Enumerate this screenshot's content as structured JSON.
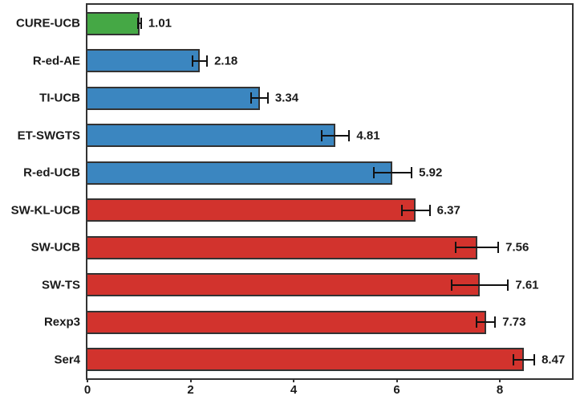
{
  "chart_data": {
    "type": "bar",
    "orientation": "horizontal",
    "title": "",
    "xlabel": "",
    "ylabel": "",
    "grid": false,
    "legend": null,
    "xlim": [
      0,
      9.4
    ],
    "x_tick_values": [
      0,
      2,
      4,
      6,
      8
    ],
    "x_tick_labels": [
      "0",
      "2",
      "4",
      "6",
      "8"
    ],
    "categories": [
      "CURE-UCB",
      "R-ed-AE",
      "TI-UCB",
      "ET-SWGTS",
      "R-ed-UCB",
      "SW-KL-UCB",
      "SW-UCB",
      "SW-TS",
      "Rexp3",
      "Ser4"
    ],
    "values": [
      1.01,
      2.18,
      3.34,
      4.81,
      5.92,
      6.37,
      7.56,
      7.61,
      7.73,
      8.47
    ],
    "value_labels": [
      "1.01",
      "2.18",
      "3.34",
      "4.81",
      "5.92",
      "6.37",
      "7.56",
      "7.61",
      "7.73",
      "8.47"
    ],
    "error_bars_estimated": [
      0.03,
      0.14,
      0.16,
      0.27,
      0.37,
      0.27,
      0.41,
      0.55,
      0.18,
      0.2
    ],
    "bar_colors": [
      "#45a845",
      "#3b86c0",
      "#3b86c0",
      "#3b86c0",
      "#3b86c0",
      "#d2332d",
      "#d2332d",
      "#d2332d",
      "#d2332d",
      "#d2332d"
    ],
    "colors": {
      "green": "#45a845",
      "blue": "#3b86c0",
      "red": "#d2332d",
      "bar_edge": "#333333",
      "error_bar": "#111111",
      "text": "#1a1a1a",
      "frame": "#333333",
      "background": "#ffffff"
    }
  }
}
